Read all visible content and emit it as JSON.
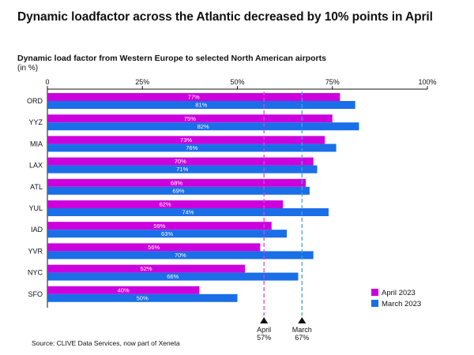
{
  "title": "Dynamic loadfactor across the Atlantic decreased by 10% points in April",
  "source": "Source: CLIVE Data Services, now part of Xeneta",
  "colors": {
    "april": "#cc00dd",
    "march": "#1a6ee8",
    "april_line": "#e040e0",
    "march_line": "#4aa0d8"
  },
  "chart_data": {
    "type": "bar",
    "orientation": "horizontal",
    "title": "Dynamic load factor from Western Europe to selected North American airports",
    "unit_label": "(in %)",
    "categories": [
      "ORD",
      "YYZ",
      "MIA",
      "LAX",
      "ATL",
      "YUL",
      "IAD",
      "YVR",
      "NYC",
      "SFO"
    ],
    "series": [
      {
        "name": "April 2023",
        "key": "april",
        "values": [
          77,
          75,
          73,
          70,
          68,
          62,
          59,
          56,
          52,
          40
        ],
        "labels": [
          "77%",
          "75%",
          "73%",
          "70%",
          "68%",
          "62%",
          "59%",
          "56%",
          "52%",
          "40%"
        ]
      },
      {
        "name": "March 2023",
        "key": "march",
        "values": [
          81,
          82,
          76,
          71,
          69,
          74,
          63,
          70,
          66,
          50
        ],
        "labels": [
          "81%",
          "82%",
          "76%",
          "71%",
          "69%",
          "74%",
          "63%",
          "70%",
          "66%",
          "50%"
        ]
      }
    ],
    "xlim": [
      0,
      100
    ],
    "ticks": [
      0,
      25,
      50,
      75,
      100
    ],
    "tick_labels": [
      "0",
      "25%",
      "50%",
      "75%",
      "100%"
    ],
    "reference_lines": [
      {
        "value": 57,
        "key": "april",
        "name": "April",
        "label": "57%"
      },
      {
        "value": 67,
        "key": "march",
        "name": "March",
        "label": "67%"
      }
    ],
    "legend_position": "bottom-right"
  }
}
